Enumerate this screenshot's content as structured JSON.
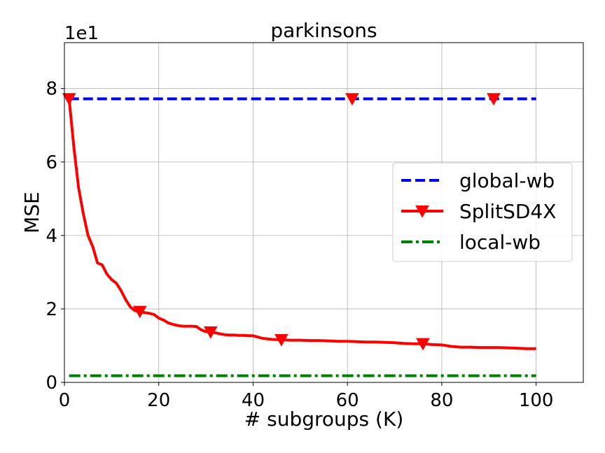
{
  "chart_data": {
    "type": "line",
    "title": "parkinsons",
    "xlabel": "# subgroups (K)",
    "ylabel": "MSE",
    "offset_text": "1e1",
    "xlim": [
      0,
      110
    ],
    "ylim": [
      0,
      9.25
    ],
    "xticks": [
      0,
      20,
      40,
      60,
      80,
      100
    ],
    "yticks": [
      0,
      2,
      4,
      6,
      8
    ],
    "grid": true,
    "legend_position": "center-right",
    "series": [
      {
        "name": "global-wb",
        "style": "dashed",
        "color": "#0000ff",
        "x": [
          1,
          100
        ],
        "y": [
          7.72,
          7.72
        ]
      },
      {
        "name": "SplitSD4X",
        "style": "solid",
        "marker": "triangle-down",
        "marker_x": [
          1,
          16,
          31,
          46,
          61,
          76,
          91
        ],
        "color": "#ff0000",
        "x": [
          1,
          2,
          3,
          4,
          5,
          6,
          7,
          8,
          9,
          10,
          11,
          12,
          13,
          14,
          15,
          16,
          17,
          18,
          19,
          20,
          21,
          22,
          23,
          24,
          25,
          26,
          27,
          28,
          29,
          30,
          31,
          32,
          33,
          34,
          35,
          36,
          37,
          38,
          39,
          40,
          42,
          44,
          46,
          48,
          50,
          52,
          54,
          56,
          58,
          60,
          62,
          64,
          66,
          68,
          70,
          72,
          74,
          76,
          78,
          80,
          82,
          84,
          86,
          88,
          90,
          92,
          94,
          96,
          98,
          100
        ],
        "y": [
          7.72,
          6.4,
          5.3,
          4.6,
          4.0,
          3.7,
          3.25,
          3.2,
          2.95,
          2.8,
          2.7,
          2.5,
          2.25,
          2.05,
          1.95,
          1.93,
          1.9,
          1.88,
          1.85,
          1.75,
          1.7,
          1.62,
          1.58,
          1.55,
          1.53,
          1.53,
          1.53,
          1.52,
          1.43,
          1.38,
          1.37,
          1.35,
          1.32,
          1.3,
          1.29,
          1.29,
          1.28,
          1.28,
          1.27,
          1.27,
          1.2,
          1.17,
          1.16,
          1.15,
          1.15,
          1.14,
          1.14,
          1.13,
          1.12,
          1.12,
          1.11,
          1.1,
          1.1,
          1.09,
          1.08,
          1.06,
          1.05,
          1.05,
          1.03,
          1.02,
          0.98,
          0.96,
          0.96,
          0.95,
          0.95,
          0.95,
          0.94,
          0.93,
          0.92,
          0.92
        ]
      },
      {
        "name": "local-wb",
        "style": "dashdot",
        "color": "#008000",
        "x": [
          1,
          100
        ],
        "y": [
          0.18,
          0.18
        ]
      }
    ]
  }
}
